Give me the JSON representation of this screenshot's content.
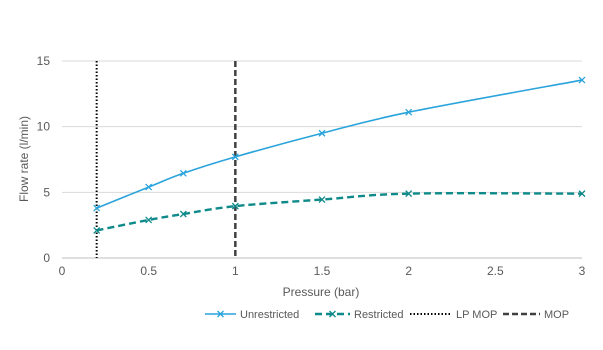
{
  "chart_data": {
    "type": "line",
    "title": "",
    "xlabel": "Pressure (bar)",
    "ylabel": "Flow rate (l/min)",
    "xlim": [
      0,
      3
    ],
    "ylim": [
      0,
      15
    ],
    "x_ticks": [
      0,
      0.5,
      1,
      1.5,
      2,
      2.5,
      3
    ],
    "x_tick_labels": [
      "0",
      "0.5",
      "1",
      "1.5",
      "2",
      "2.5",
      "3"
    ],
    "y_ticks": [
      0,
      5,
      10,
      15
    ],
    "y_tick_labels": [
      "0",
      "5",
      "10",
      "15"
    ],
    "grid": "horizontal",
    "legend_position": "bottom",
    "series": [
      {
        "name": "Unrestricted",
        "color": "#29a3db",
        "style": "solid",
        "marker": "x",
        "x": [
          0.2,
          0.5,
          0.7,
          1,
          1.5,
          2,
          3
        ],
        "y": [
          3.8,
          5.4,
          6.45,
          7.7,
          9.5,
          11.1,
          13.55
        ]
      },
      {
        "name": "Restricted",
        "color": "#0f8a8a",
        "style": "dashed",
        "marker": "x",
        "x": [
          0.2,
          0.5,
          0.7,
          1,
          1.5,
          2,
          3
        ],
        "y": [
          2.1,
          2.9,
          3.35,
          3.95,
          4.45,
          4.9,
          4.9
        ]
      }
    ],
    "reference_lines": [
      {
        "name": "LP MOP",
        "x": 0.2,
        "color": "#000000",
        "style": "dotted"
      },
      {
        "name": "MOP",
        "x": 1,
        "color": "#404040",
        "style": "dashed"
      }
    ]
  }
}
